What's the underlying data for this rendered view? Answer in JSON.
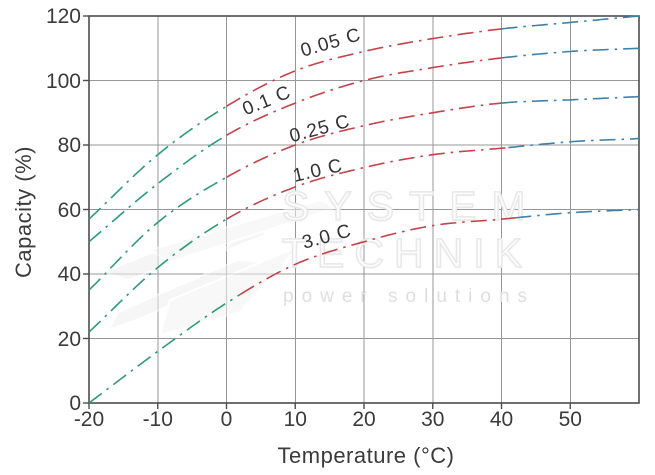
{
  "watermark": {
    "line1": "SYSTEM",
    "line2": "TECHNIK",
    "tagline": "power solutions"
  },
  "chart_data": {
    "type": "line",
    "title": "",
    "xlabel": "Temperature (°C)",
    "ylabel": "Capacity (%)",
    "xlim": [
      -20,
      60
    ],
    "ylim": [
      0,
      120
    ],
    "x_ticks": [
      -20,
      -10,
      0,
      10,
      20,
      30,
      40,
      50
    ],
    "y_ticks": [
      0,
      20,
      40,
      60,
      80,
      100,
      120
    ],
    "grid": true,
    "line_style": "dash-dot",
    "legend": "inline-curve-labels",
    "colors": {
      "cold_segment": "#2e9b77",
      "warm_segment": "#c4434b",
      "hot_segment": "#4181a6",
      "grid": "#979797",
      "frame": "#4d4d4d",
      "text": "#3b3b3b"
    },
    "series": [
      {
        "name": "0.05 C",
        "green_until": 0,
        "blue_from": 40,
        "label": {
          "x": 15.2,
          "y": 111.5,
          "angle": -16
        },
        "points": [
          [
            -20,
            57
          ],
          [
            -10,
            77
          ],
          [
            0,
            92
          ],
          [
            10,
            103
          ],
          [
            20,
            109
          ],
          [
            30,
            113
          ],
          [
            40,
            116
          ],
          [
            50,
            118
          ],
          [
            60,
            120
          ]
        ]
      },
      {
        "name": "0.1 C",
        "green_until": 0,
        "blue_from": 40,
        "label": {
          "x": 5.9,
          "y": 93.5,
          "angle": -22
        },
        "points": [
          [
            -20,
            50
          ],
          [
            -10,
            68
          ],
          [
            0,
            83
          ],
          [
            10,
            93
          ],
          [
            20,
            100
          ],
          [
            30,
            104
          ],
          [
            40,
            107
          ],
          [
            50,
            109
          ],
          [
            60,
            110
          ]
        ]
      },
      {
        "name": "0.25 C",
        "green_until": 0,
        "blue_from": 40,
        "label": {
          "x": 13.6,
          "y": 85.0,
          "angle": -15
        },
        "points": [
          [
            -20,
            35
          ],
          [
            -10,
            56
          ],
          [
            0,
            70
          ],
          [
            10,
            80
          ],
          [
            20,
            86
          ],
          [
            30,
            90
          ],
          [
            40,
            93
          ],
          [
            50,
            94
          ],
          [
            60,
            95
          ]
        ]
      },
      {
        "name": "1.0 C",
        "green_until": 0,
        "blue_from": 41,
        "label": {
          "x": 13.3,
          "y": 72.0,
          "angle": -13
        },
        "points": [
          [
            -20,
            22
          ],
          [
            -10,
            42
          ],
          [
            0,
            57
          ],
          [
            10,
            67
          ],
          [
            20,
            73
          ],
          [
            30,
            77
          ],
          [
            40,
            79
          ],
          [
            50,
            81
          ],
          [
            60,
            82
          ]
        ]
      },
      {
        "name": "3.0 C",
        "green_until": 2,
        "blue_from": 42,
        "label": {
          "x": 14.6,
          "y": 51.5,
          "angle": -15
        },
        "points": [
          [
            -20,
            0
          ],
          [
            -10,
            16
          ],
          [
            0,
            31
          ],
          [
            10,
            43
          ],
          [
            20,
            50
          ],
          [
            30,
            55
          ],
          [
            40,
            57
          ],
          [
            50,
            59
          ],
          [
            60,
            60
          ]
        ]
      }
    ]
  }
}
